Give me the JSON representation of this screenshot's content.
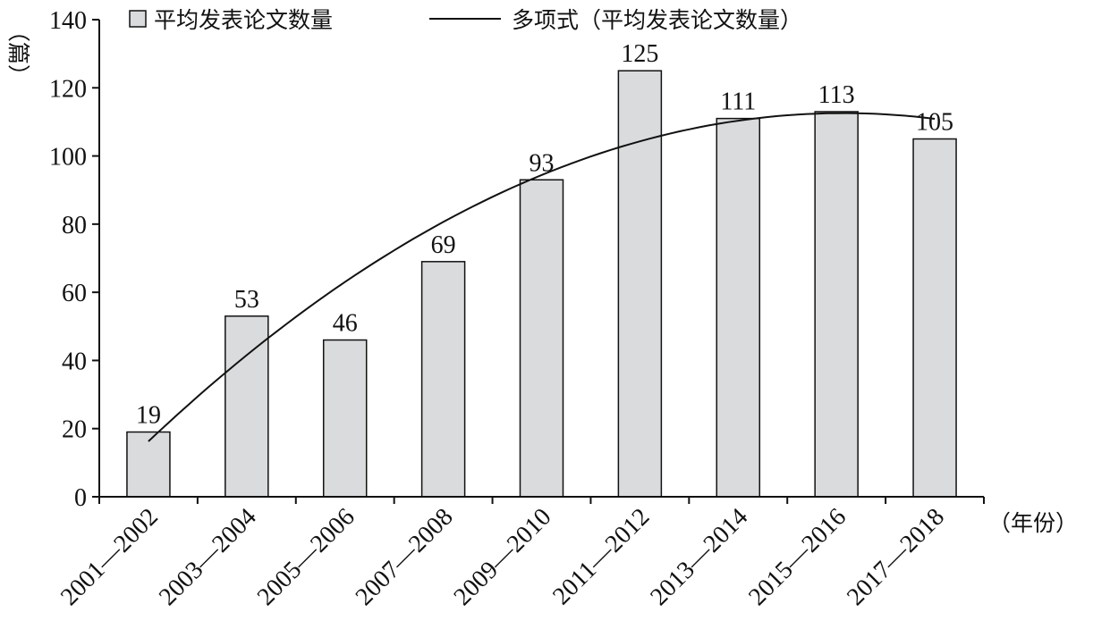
{
  "chart_data": {
    "type": "bar",
    "categories": [
      "2001—2002",
      "2003—2004",
      "2005—2006",
      "2007—2008",
      "2009—2010",
      "2011—2012",
      "2013—2014",
      "2015—2016",
      "2017—2018"
    ],
    "series": [
      {
        "name": "平均发表论文数量",
        "type": "bar",
        "values": [
          19,
          53,
          46,
          69,
          93,
          125,
          111,
          113,
          105
        ]
      },
      {
        "name": "多项式（平均发表论文数量）",
        "type": "line",
        "trendline": "polynomial"
      }
    ],
    "data_labels": [
      "19",
      "53",
      "46",
      "69",
      "93",
      "125",
      "111",
      "113",
      "105"
    ],
    "ylabel": "（篇）",
    "xlabel": "（年份）",
    "ylim": [
      0,
      140
    ],
    "yticks": [
      0,
      20,
      40,
      60,
      80,
      100,
      120,
      140
    ],
    "legend_position": "top",
    "grid": false,
    "colors": {
      "bar_fill": "#d9dbdc",
      "bar_stroke": "#111111",
      "line": "#111111",
      "axis": "#111111"
    }
  }
}
